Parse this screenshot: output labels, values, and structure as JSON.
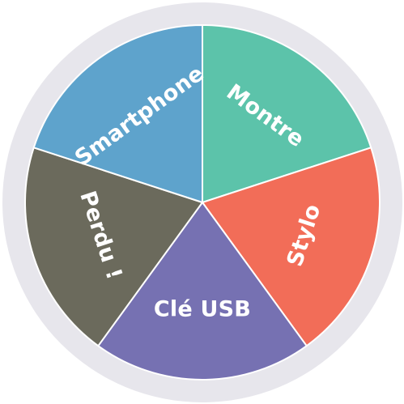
{
  "wheel": {
    "rim_color": "#e7e6ec",
    "segments": [
      {
        "label": "Montre",
        "color": "#5cc3aa"
      },
      {
        "label": "Stylo",
        "color": "#f26d58"
      },
      {
        "label": "Clé USB",
        "color": "#7671b2"
      },
      {
        "label": "Perdu !",
        "color": "#6b6a5c"
      },
      {
        "label": "Smartphone",
        "color": "#5ea3cc"
      }
    ]
  }
}
